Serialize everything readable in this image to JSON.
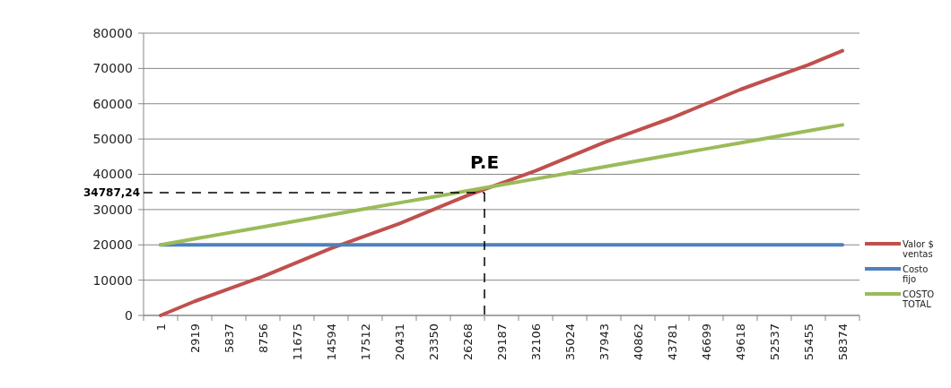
{
  "chart_data": {
    "type": "line",
    "categories": [
      "1",
      "2919",
      "5837",
      "8756",
      "11675",
      "14594",
      "17512",
      "20431",
      "23350",
      "26268",
      "29187",
      "32106",
      "35024",
      "37943",
      "40862",
      "43781",
      "46699",
      "49618",
      "52537",
      "55455",
      "58374"
    ],
    "series": [
      {
        "name": "Valor $ ventas",
        "color": "#c0504d",
        "values": [
          0,
          4000,
          7500,
          11000,
          15000,
          19000,
          22500,
          26000,
          30000,
          34000,
          37500,
          41000,
          45000,
          49000,
          52500,
          56000,
          60000,
          64000,
          67500,
          71000,
          75000
        ]
      },
      {
        "name": "Costo fijo",
        "color": "#4f81bd",
        "values": [
          20000,
          20000,
          20000,
          20000,
          20000,
          20000,
          20000,
          20000,
          20000,
          20000,
          20000,
          20000,
          20000,
          20000,
          20000,
          20000,
          20000,
          20000,
          20000,
          20000,
          20000
        ]
      },
      {
        "name": "COSTO TOTAL",
        "color": "#9bbb59",
        "values": [
          20000,
          21700,
          23400,
          25100,
          26800,
          28500,
          30200,
          31900,
          33600,
          35300,
          37000,
          38700,
          40400,
          42100,
          43800,
          45500,
          47200,
          48900,
          50600,
          52300,
          54000
        ]
      }
    ],
    "ylim": [
      0,
      80000
    ],
    "yticks": [
      0,
      10000,
      20000,
      30000,
      40000,
      50000,
      60000,
      70000,
      80000
    ],
    "grid": "y",
    "legend": "right",
    "marker": "none",
    "line_style": "solid",
    "ref_lines": [
      {
        "axis": "y",
        "value": 34787.24,
        "label": "34787,24",
        "color": "#000000",
        "line_style": "dashed"
      },
      {
        "axis": "x",
        "value": "29187",
        "color": "#000000",
        "line_style": "dashed"
      }
    ],
    "annotations": [
      "P.E"
    ]
  }
}
